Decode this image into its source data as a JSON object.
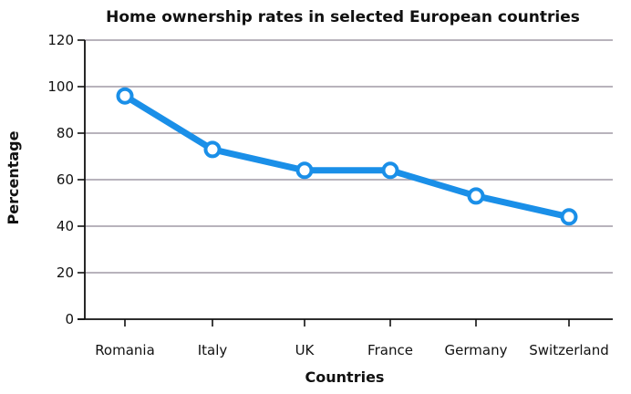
{
  "chart_data": {
    "type": "line",
    "title": "Home ownership rates in selected European countries",
    "xlabel": "Countries",
    "ylabel": "Percentage",
    "categories": [
      "Romania",
      "Italy",
      "UK",
      "France",
      "Germany",
      "Switzerland"
    ],
    "series": [
      {
        "values": [
          96,
          73,
          64,
          64,
          53,
          44
        ]
      }
    ],
    "ylim": [
      0,
      120
    ],
    "yticks": [
      "0",
      "20",
      "40",
      "60",
      "80",
      "100",
      "120"
    ],
    "grid": true,
    "colors": {
      "line": "#1a8fe8",
      "marker_fill": "#ffffff",
      "grid": "#a09aa6",
      "axis": "#111111"
    }
  }
}
